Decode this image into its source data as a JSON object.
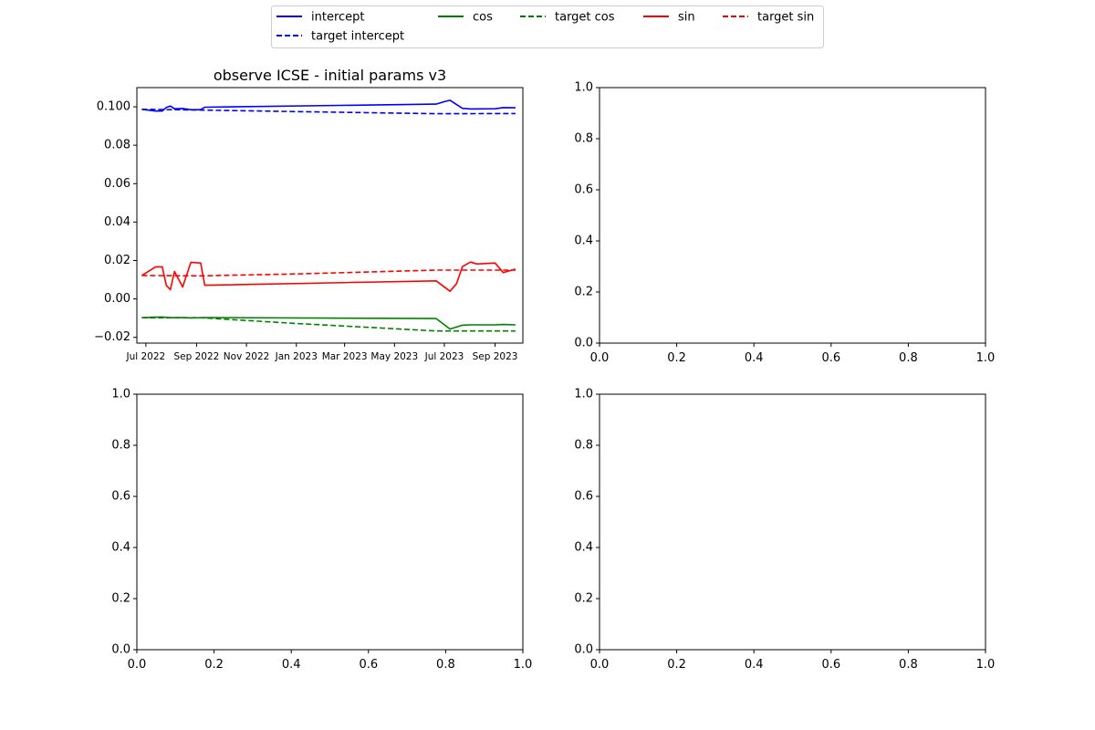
{
  "legend": {
    "placement": "top-center",
    "entries": [
      {
        "label": "intercept",
        "color": "#0000ff",
        "style": "solid"
      },
      {
        "label": "target intercept",
        "color": "#0000ff",
        "style": "dashed"
      },
      {
        "label": "cos",
        "color": "#008000",
        "style": "solid"
      },
      {
        "label": "target cos",
        "color": "#008000",
        "style": "dashed"
      },
      {
        "label": "sin",
        "color": "#ff0000",
        "style": "solid"
      },
      {
        "label": "target sin",
        "color": "#ff0000",
        "style": "dashed"
      }
    ]
  },
  "chart_data": [
    {
      "type": "line",
      "title": "observe ICSE - initial params v3",
      "xlabel": "",
      "ylabel": "",
      "x_axis": "date",
      "xlim": [
        "2022-06-20",
        "2023-10-05"
      ],
      "ylim": [
        -0.023,
        0.11
      ],
      "grid": false,
      "x_ticks": [
        {
          "date": "2022-07-01",
          "label": "Jul 2022"
        },
        {
          "date": "2022-09-01",
          "label": "Sep 2022"
        },
        {
          "date": "2022-11-01",
          "label": "Nov 2022"
        },
        {
          "date": "2023-01-01",
          "label": "Jan 2023"
        },
        {
          "date": "2023-03-01",
          "label": "Mar 2023"
        },
        {
          "date": "2023-05-01",
          "label": "May 2023"
        },
        {
          "date": "2023-07-01",
          "label": "Jul 2023"
        },
        {
          "date": "2023-09-01",
          "label": "Sep 2023"
        }
      ],
      "y_ticks": [
        {
          "value": 0.1,
          "label": "0.100"
        },
        {
          "value": 0.08,
          "label": "0.08"
        },
        {
          "value": 0.06,
          "label": "0.06"
        },
        {
          "value": 0.04,
          "label": "0.04"
        },
        {
          "value": 0.02,
          "label": "0.02"
        },
        {
          "value": 0.0,
          "label": "0.00"
        },
        {
          "value": -0.02,
          "label": "−0.02"
        }
      ],
      "series": [
        {
          "name": "intercept",
          "color": "#0000ff",
          "style": "solid",
          "points": [
            [
              "2022-06-26",
              0.0987
            ],
            [
              "2022-07-03",
              0.0983
            ],
            [
              "2022-07-13",
              0.0978
            ],
            [
              "2022-07-21",
              0.0978
            ],
            [
              "2022-07-26",
              0.0997
            ],
            [
              "2022-07-31",
              0.1004
            ],
            [
              "2022-08-05",
              0.099
            ],
            [
              "2022-08-15",
              0.0991
            ],
            [
              "2022-08-25",
              0.0985
            ],
            [
              "2022-09-06",
              0.0985
            ],
            [
              "2022-09-11",
              0.0998
            ],
            [
              "2023-06-21",
              0.1014
            ],
            [
              "2023-07-01",
              0.1027
            ],
            [
              "2023-07-08",
              0.1034
            ],
            [
              "2023-07-23",
              0.0992
            ],
            [
              "2023-08-02",
              0.0989
            ],
            [
              "2023-09-01",
              0.099
            ],
            [
              "2023-09-11",
              0.0996
            ],
            [
              "2023-09-26",
              0.0995
            ]
          ]
        },
        {
          "name": "target intercept",
          "color": "#0000ff",
          "style": "dashed",
          "points": [
            [
              "2022-06-26",
              0.0987
            ],
            [
              "2022-09-06",
              0.0983
            ],
            [
              "2023-01-01",
              0.0975
            ],
            [
              "2023-06-21",
              0.0964
            ],
            [
              "2023-09-26",
              0.0965
            ]
          ]
        },
        {
          "name": "cos",
          "color": "#008000",
          "style": "solid",
          "points": [
            [
              "2022-06-26",
              -0.0098
            ],
            [
              "2022-07-13",
              -0.0095
            ],
            [
              "2022-07-21",
              -0.0094
            ],
            [
              "2022-07-31",
              -0.0098
            ],
            [
              "2022-08-15",
              -0.0097
            ],
            [
              "2022-08-25",
              -0.0099
            ],
            [
              "2022-09-06",
              -0.0098
            ],
            [
              "2022-09-11",
              -0.0097
            ],
            [
              "2023-06-21",
              -0.0102
            ],
            [
              "2023-07-08",
              -0.0157
            ],
            [
              "2023-07-23",
              -0.0137
            ],
            [
              "2023-08-02",
              -0.0135
            ],
            [
              "2023-09-01",
              -0.0135
            ],
            [
              "2023-09-11",
              -0.0133
            ],
            [
              "2023-09-26",
              -0.0135
            ]
          ]
        },
        {
          "name": "target cos",
          "color": "#008000",
          "style": "dashed",
          "points": [
            [
              "2022-06-26",
              -0.0098
            ],
            [
              "2022-09-06",
              -0.0098
            ],
            [
              "2023-01-01",
              -0.0128
            ],
            [
              "2023-06-21",
              -0.0167
            ],
            [
              "2023-09-26",
              -0.0167
            ]
          ]
        },
        {
          "name": "sin",
          "color": "#ff0000",
          "style": "solid",
          "points": [
            [
              "2022-06-26",
              0.0122
            ],
            [
              "2022-07-13",
              0.0167
            ],
            [
              "2022-07-21",
              0.0167
            ],
            [
              "2022-07-26",
              0.007
            ],
            [
              "2022-07-31",
              0.0048
            ],
            [
              "2022-08-05",
              0.0143
            ],
            [
              "2022-08-15",
              0.0062
            ],
            [
              "2022-08-25",
              0.019
            ],
            [
              "2022-09-06",
              0.0187
            ],
            [
              "2022-09-11",
              0.0071
            ],
            [
              "2023-06-21",
              0.0094
            ],
            [
              "2023-07-08",
              0.004
            ],
            [
              "2023-07-16",
              0.008
            ],
            [
              "2023-07-23",
              0.0168
            ],
            [
              "2023-08-02",
              0.0192
            ],
            [
              "2023-08-10",
              0.0182
            ],
            [
              "2023-09-01",
              0.0187
            ],
            [
              "2023-09-11",
              0.0137
            ],
            [
              "2023-09-26",
              0.0155
            ]
          ]
        },
        {
          "name": "target sin",
          "color": "#ff0000",
          "style": "dashed",
          "points": [
            [
              "2022-06-26",
              0.0122
            ],
            [
              "2022-09-06",
              0.012
            ],
            [
              "2023-01-01",
              0.013
            ],
            [
              "2023-06-21",
              0.015
            ],
            [
              "2023-09-26",
              0.015
            ]
          ]
        }
      ]
    },
    {
      "type": "line",
      "title": "",
      "xlim": [
        0,
        1
      ],
      "ylim": [
        0,
        1
      ],
      "x_ticks": [
        {
          "value": 0,
          "label": "0.0"
        },
        {
          "value": 0.2,
          "label": "0.2"
        },
        {
          "value": 0.4,
          "label": "0.4"
        },
        {
          "value": 0.6,
          "label": "0.6"
        },
        {
          "value": 0.8,
          "label": "0.8"
        },
        {
          "value": 1,
          "label": "1.0"
        }
      ],
      "y_ticks": [
        {
          "value": 0,
          "label": "0.0"
        },
        {
          "value": 0.2,
          "label": "0.2"
        },
        {
          "value": 0.4,
          "label": "0.4"
        },
        {
          "value": 0.6,
          "label": "0.6"
        },
        {
          "value": 0.8,
          "label": "0.8"
        },
        {
          "value": 1,
          "label": "1.0"
        }
      ],
      "series": []
    },
    {
      "type": "line",
      "title": "",
      "xlim": [
        0,
        1
      ],
      "ylim": [
        0,
        1
      ],
      "x_ticks": [
        {
          "value": 0,
          "label": "0.0"
        },
        {
          "value": 0.2,
          "label": "0.2"
        },
        {
          "value": 0.4,
          "label": "0.4"
        },
        {
          "value": 0.6,
          "label": "0.6"
        },
        {
          "value": 0.8,
          "label": "0.8"
        },
        {
          "value": 1,
          "label": "1.0"
        }
      ],
      "y_ticks": [
        {
          "value": 0,
          "label": "0.0"
        },
        {
          "value": 0.2,
          "label": "0.2"
        },
        {
          "value": 0.4,
          "label": "0.4"
        },
        {
          "value": 0.6,
          "label": "0.6"
        },
        {
          "value": 0.8,
          "label": "0.8"
        },
        {
          "value": 1,
          "label": "1.0"
        }
      ],
      "series": []
    },
    {
      "type": "line",
      "title": "",
      "xlim": [
        0,
        1
      ],
      "ylim": [
        0,
        1
      ],
      "x_ticks": [
        {
          "value": 0,
          "label": "0.0"
        },
        {
          "value": 0.2,
          "label": "0.2"
        },
        {
          "value": 0.4,
          "label": "0.4"
        },
        {
          "value": 0.6,
          "label": "0.6"
        },
        {
          "value": 0.8,
          "label": "0.8"
        },
        {
          "value": 1,
          "label": "1.0"
        }
      ],
      "y_ticks": [
        {
          "value": 0,
          "label": "0.0"
        },
        {
          "value": 0.2,
          "label": "0.2"
        },
        {
          "value": 0.4,
          "label": "0.4"
        },
        {
          "value": 0.6,
          "label": "0.6"
        },
        {
          "value": 0.8,
          "label": "0.8"
        },
        {
          "value": 1,
          "label": "1.0"
        }
      ],
      "series": []
    }
  ]
}
